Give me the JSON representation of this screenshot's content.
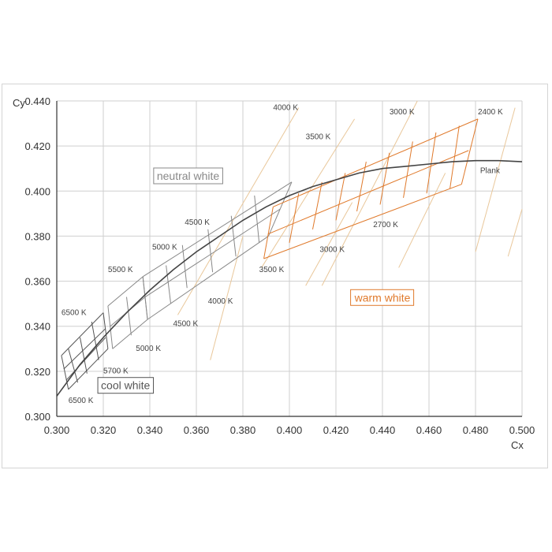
{
  "chart_data": {
    "type": "line",
    "xlabel": "Cx",
    "ylabel": "Cy",
    "xlim": [
      0.3,
      0.5
    ],
    "ylim": [
      0.3,
      0.44
    ],
    "x_ticks": [
      "0.300",
      "0.320",
      "0.340",
      "0.360",
      "0.380",
      "0.400",
      "0.420",
      "0.440",
      "0.460",
      "0.480",
      "0.500"
    ],
    "y_ticks": [
      "0.300",
      "0.320",
      "0.340",
      "0.360",
      "0.380",
      "0.400",
      "0.420",
      "0.440"
    ],
    "grid": true,
    "colors": {
      "cool": "#555555",
      "neutral": "#888888",
      "warm": "#e07a2c",
      "isotherm": "#e9c79a",
      "plank": "#444444"
    },
    "plank": {
      "label": "Plank",
      "points": [
        [
          0.3,
          0.309
        ],
        [
          0.31,
          0.323
        ],
        [
          0.32,
          0.335
        ],
        [
          0.33,
          0.346
        ],
        [
          0.34,
          0.356
        ],
        [
          0.35,
          0.365
        ],
        [
          0.36,
          0.373
        ],
        [
          0.37,
          0.38
        ],
        [
          0.38,
          0.387
        ],
        [
          0.39,
          0.393
        ],
        [
          0.4,
          0.398
        ],
        [
          0.41,
          0.402
        ],
        [
          0.42,
          0.405
        ],
        [
          0.43,
          0.408
        ],
        [
          0.44,
          0.41
        ],
        [
          0.45,
          0.411
        ],
        [
          0.46,
          0.412
        ],
        [
          0.47,
          0.413
        ],
        [
          0.48,
          0.4135
        ],
        [
          0.49,
          0.4135
        ],
        [
          0.5,
          0.413
        ]
      ]
    },
    "isotherms": [
      {
        "x": [
          0.352,
          0.404
        ],
        "y": [
          0.345,
          0.437
        ]
      },
      {
        "x": [
          0.366,
          0.38
        ],
        "y": [
          0.325,
          0.38
        ]
      },
      {
        "x": [
          0.388,
          0.428
        ],
        "y": [
          0.366,
          0.432
        ]
      },
      {
        "x": [
          0.407,
          0.427
        ],
        "y": [
          0.358,
          0.395
        ]
      },
      {
        "x": [
          0.414,
          0.455
        ],
        "y": [
          0.358,
          0.44
        ]
      },
      {
        "x": [
          0.447,
          0.467
        ],
        "y": [
          0.366,
          0.408
        ]
      },
      {
        "x": [
          0.48,
          0.497
        ],
        "y": [
          0.373,
          0.437
        ]
      },
      {
        "x": [
          0.494,
          0.5
        ],
        "y": [
          0.371,
          0.392
        ]
      }
    ],
    "regions": [
      {
        "name": "cool",
        "color": "#555555",
        "isolines": [
          [
            [
              0.302,
              0.327
            ],
            [
              0.305,
              0.312
            ]
          ],
          [
            [
              0.305,
              0.33
            ],
            [
              0.309,
              0.315
            ]
          ],
          [
            [
              0.31,
              0.335
            ],
            [
              0.313,
              0.319
            ]
          ],
          [
            [
              0.315,
              0.342
            ],
            [
              0.318,
              0.325
            ]
          ],
          [
            [
              0.32,
              0.346
            ],
            [
              0.322,
              0.33
            ]
          ]
        ],
        "offsets": [
          [
            [
              0.302,
              0.327
            ],
            [
              0.32,
              0.346
            ]
          ],
          [
            [
              0.303,
              0.321
            ],
            [
              0.321,
              0.339
            ]
          ],
          [
            [
              0.304,
              0.316
            ],
            [
              0.321,
              0.335
            ]
          ],
          [
            [
              0.305,
              0.312
            ],
            [
              0.322,
              0.33
            ]
          ]
        ]
      },
      {
        "name": "neutral-grey",
        "color": "#888888",
        "isolines": [
          [
            [
              0.322,
              0.349
            ],
            [
              0.324,
              0.33
            ]
          ],
          [
            [
              0.33,
              0.353
            ],
            [
              0.332,
              0.336
            ]
          ],
          [
            [
              0.337,
              0.362
            ],
            [
              0.339,
              0.343
            ]
          ]
        ],
        "offsets": [
          [
            [
              0.322,
              0.349
            ],
            [
              0.337,
              0.362
            ]
          ],
          [
            [
              0.323,
              0.34
            ],
            [
              0.338,
              0.353
            ]
          ],
          [
            [
              0.324,
              0.33
            ],
            [
              0.339,
              0.343
            ]
          ]
        ]
      },
      {
        "name": "neutral",
        "color": "#888888",
        "isolines": [
          [
            [
              0.337,
              0.362
            ],
            [
              0.339,
              0.343
            ]
          ],
          [
            [
              0.347,
              0.367
            ],
            [
              0.349,
              0.35
            ]
          ],
          [
            [
              0.354,
              0.376
            ],
            [
              0.356,
              0.357
            ]
          ],
          [
            [
              0.365,
              0.383
            ],
            [
              0.367,
              0.364
            ]
          ],
          [
            [
              0.375,
              0.389
            ],
            [
              0.377,
              0.371
            ]
          ],
          [
            [
              0.385,
              0.398
            ],
            [
              0.387,
              0.377
            ]
          ],
          [
            [
              0.401,
              0.404
            ],
            [
              0.391,
              0.38
            ]
          ]
        ],
        "offsets": [
          [
            [
              0.337,
              0.362
            ],
            [
              0.401,
              0.404
            ]
          ],
          [
            [
              0.338,
              0.353
            ],
            [
              0.396,
              0.392
            ]
          ],
          [
            [
              0.339,
              0.343
            ],
            [
              0.391,
              0.38
            ]
          ]
        ]
      },
      {
        "name": "warm",
        "color": "#e07a2c",
        "isolines": [
          [
            [
              0.393,
              0.393
            ],
            [
              0.389,
              0.37
            ]
          ],
          [
            [
              0.404,
              0.399
            ],
            [
              0.4,
              0.377
            ]
          ],
          [
            [
              0.414,
              0.404
            ],
            [
              0.41,
              0.383
            ]
          ],
          [
            [
              0.424,
              0.408
            ],
            [
              0.42,
              0.387
            ]
          ],
          [
            [
              0.433,
              0.413
            ],
            [
              0.429,
              0.391
            ]
          ],
          [
            [
              0.443,
              0.417
            ],
            [
              0.439,
              0.394
            ]
          ],
          [
            [
              0.453,
              0.422
            ],
            [
              0.449,
              0.397
            ]
          ],
          [
            [
              0.463,
              0.426
            ],
            [
              0.459,
              0.399
            ]
          ],
          [
            [
              0.473,
              0.429
            ],
            [
              0.469,
              0.401
            ]
          ],
          [
            [
              0.481,
              0.432
            ],
            [
              0.474,
              0.403
            ]
          ]
        ],
        "offsets": [
          [
            [
              0.393,
              0.393
            ],
            [
              0.481,
              0.432
            ]
          ],
          [
            [
              0.391,
              0.381
            ],
            [
              0.477,
              0.418
            ]
          ],
          [
            [
              0.389,
              0.37
            ],
            [
              0.474,
              0.403
            ]
          ]
        ]
      }
    ],
    "labels": [
      {
        "text": "6500 K",
        "x": 0.302,
        "y": 0.345
      },
      {
        "text": "6500 K",
        "x": 0.305,
        "y": 0.306
      },
      {
        "text": "5700 K",
        "x": 0.32,
        "y": 0.319
      },
      {
        "text": "5500 K",
        "x": 0.322,
        "y": 0.364
      },
      {
        "text": "5000 K",
        "x": 0.334,
        "y": 0.329
      },
      {
        "text": "5000 K",
        "x": 0.341,
        "y": 0.374
      },
      {
        "text": "4500 K",
        "x": 0.35,
        "y": 0.34
      },
      {
        "text": "4500 K",
        "x": 0.355,
        "y": 0.385
      },
      {
        "text": "4000 K",
        "x": 0.365,
        "y": 0.35
      },
      {
        "text": "4000 K",
        "x": 0.393,
        "y": 0.436
      },
      {
        "text": "3500 K",
        "x": 0.387,
        "y": 0.364
      },
      {
        "text": "3500 K",
        "x": 0.407,
        "y": 0.423
      },
      {
        "text": "3000 K",
        "x": 0.413,
        "y": 0.373
      },
      {
        "text": "3000 K",
        "x": 0.443,
        "y": 0.434
      },
      {
        "text": "2700 K",
        "x": 0.436,
        "y": 0.384
      },
      {
        "text": "2400 K",
        "x": 0.481,
        "y": 0.434
      },
      {
        "text": "Plank",
        "x": 0.482,
        "y": 0.408
      }
    ],
    "region_labels": [
      {
        "text": "neutral white",
        "x": 0.343,
        "y": 0.405,
        "color": "#888888"
      },
      {
        "text": "cool white",
        "x": 0.319,
        "y": 0.312,
        "color": "#555555"
      },
      {
        "text": "warm white",
        "x": 0.428,
        "y": 0.351,
        "color": "#e07a2c"
      }
    ]
  }
}
